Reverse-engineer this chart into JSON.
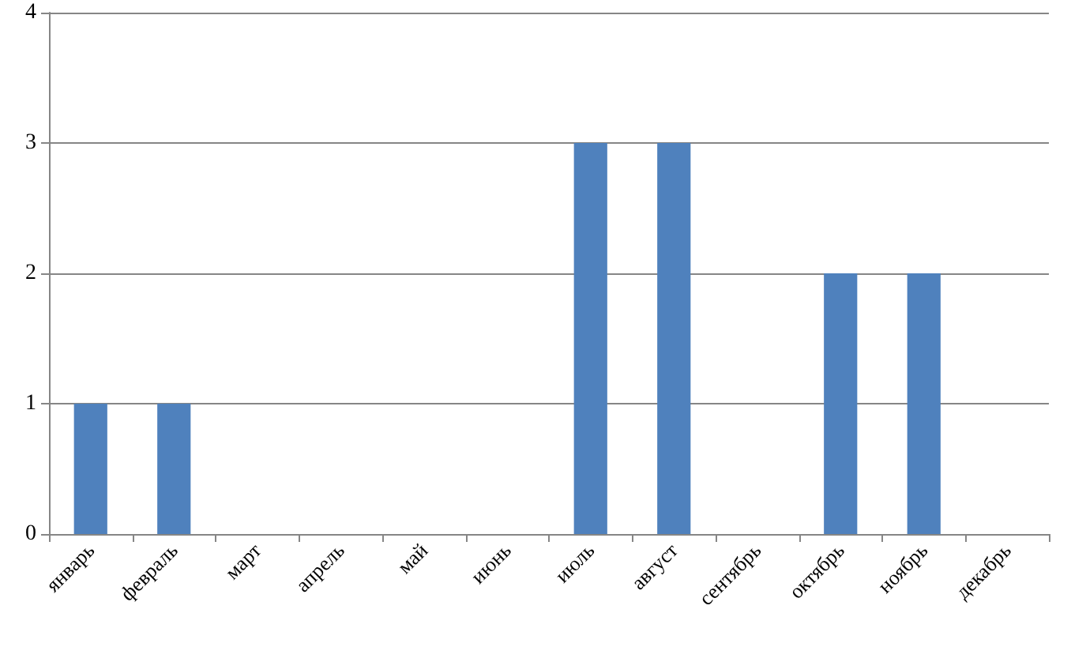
{
  "chart_data": {
    "type": "bar",
    "categories": [
      "январь",
      "февраль",
      "март",
      "апрель",
      "май",
      "июнь",
      "июль",
      "август",
      "сентябрь",
      "октябрь",
      "ноябрь",
      "декабрь"
    ],
    "values": [
      1,
      1,
      0,
      0,
      0,
      0,
      3,
      3,
      0,
      2,
      2,
      0
    ],
    "color": "#4f81bd",
    "ylim": [
      0,
      4
    ],
    "yticks": [
      0,
      1,
      2,
      3,
      4
    ],
    "grid": "y"
  }
}
